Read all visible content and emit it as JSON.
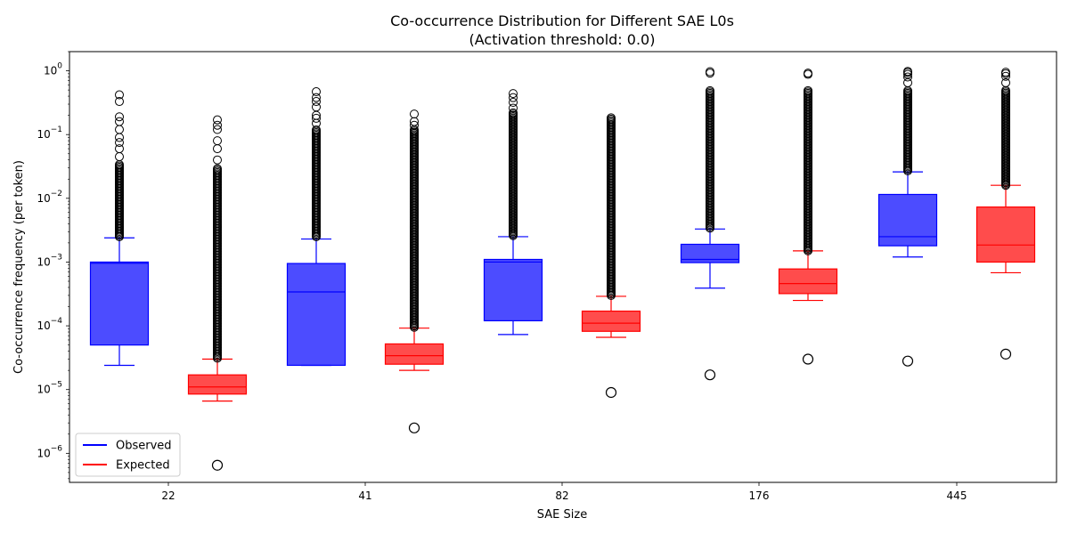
{
  "chart_data": {
    "type": "box",
    "title": "Co-occurrence Distribution for Different SAE L0s",
    "subtitle": "(Activation threshold: 0.0)",
    "xlabel": "SAE Size",
    "ylabel": "Co-occurrence frequency (per token)",
    "yscale": "log",
    "ylim": [
      3.5e-07,
      2
    ],
    "yticks": [
      {
        "value": 1e-06,
        "label_base": "10",
        "label_exp": "−6"
      },
      {
        "value": 1e-05,
        "label_base": "10",
        "label_exp": "−5"
      },
      {
        "value": 0.0001,
        "label_base": "10",
        "label_exp": "−4"
      },
      {
        "value": 0.001,
        "label_base": "10",
        "label_exp": "−3"
      },
      {
        "value": 0.01,
        "label_base": "10",
        "label_exp": "−2"
      },
      {
        "value": 0.1,
        "label_base": "10",
        "label_exp": "−1"
      },
      {
        "value": 1,
        "label_base": "10",
        "label_exp": "0"
      }
    ],
    "categories": [
      "22",
      "41",
      "82",
      "176",
      "445"
    ],
    "legend": {
      "location": "lower-left",
      "entries": [
        {
          "name": "Observed",
          "color": "#0000ff"
        },
        {
          "name": "Expected",
          "color": "#ff0000"
        }
      ]
    },
    "series": [
      {
        "name": "Observed",
        "color": "#0000ff",
        "boxes": [
          {
            "category": "22",
            "whisker_low": 2.4e-05,
            "q1": 5e-05,
            "median": 0.00096,
            "q3": 0.001,
            "whisker_high": 0.0024,
            "flier_low": null,
            "flier_dense_from": 0.0025,
            "flier_dense_to": 0.035,
            "flier_points": [
              0.045,
              0.06,
              0.075,
              0.09,
              0.12,
              0.16,
              0.19,
              0.33,
              0.42
            ]
          },
          {
            "category": "41",
            "whisker_low": 2.4e-05,
            "q1": 2.4e-05,
            "median": 0.00034,
            "q3": 0.00095,
            "whisker_high": 0.0023,
            "flier_low": null,
            "flier_dense_from": 0.0025,
            "flier_dense_to": 0.12,
            "flier_points": [
              0.15,
              0.18,
              0.2,
              0.27,
              0.33,
              0.38,
              0.47
            ]
          },
          {
            "category": "82",
            "whisker_low": 7.3e-05,
            "q1": 0.00012,
            "median": 0.001,
            "q3": 0.0011,
            "whisker_high": 0.0025,
            "flier_low": null,
            "flier_dense_from": 0.0026,
            "flier_dense_to": 0.22,
            "flier_points": [
              0.26,
              0.32,
              0.38,
              0.44
            ]
          },
          {
            "category": "176",
            "whisker_low": 0.00039,
            "q1": 0.00098,
            "median": 0.0011,
            "q3": 0.0019,
            "whisker_high": 0.0033,
            "flier_low": 1.7e-05,
            "flier_dense_from": 0.0034,
            "flier_dense_to": 0.5,
            "flier_points": [
              0.92,
              0.97
            ]
          },
          {
            "category": "445",
            "whisker_low": 0.0012,
            "q1": 0.0018,
            "median": 0.0025,
            "q3": 0.0115,
            "whisker_high": 0.026,
            "flier_low": 2.8e-05,
            "flier_dense_from": 0.027,
            "flier_dense_to": 0.5,
            "flier_points": [
              0.65,
              0.8,
              0.88,
              0.94,
              0.98
            ]
          }
        ]
      },
      {
        "name": "Expected",
        "color": "#ff0000",
        "boxes": [
          {
            "category": "22",
            "whisker_low": 6.6e-06,
            "q1": 8.5e-06,
            "median": 1.1e-05,
            "q3": 1.7e-05,
            "whisker_high": 3e-05,
            "flier_low": 6.5e-07,
            "flier_dense_from": 3.1e-05,
            "flier_dense_to": 0.03,
            "flier_points": [
              0.04,
              0.06,
              0.08,
              0.12,
              0.14,
              0.17
            ]
          },
          {
            "category": "41",
            "whisker_low": 2e-05,
            "q1": 2.5e-05,
            "median": 3.4e-05,
            "q3": 5.2e-05,
            "whisker_high": 9.2e-05,
            "flier_low": 2.5e-06,
            "flier_dense_from": 9.5e-05,
            "flier_dense_to": 0.12,
            "flier_points": [
              0.14,
              0.16,
              0.21
            ]
          },
          {
            "category": "82",
            "whisker_low": 6.6e-05,
            "q1": 8.2e-05,
            "median": 0.00011,
            "q3": 0.00017,
            "whisker_high": 0.00029,
            "flier_low": 9e-06,
            "flier_dense_from": 0.0003,
            "flier_dense_to": 0.19,
            "flier_points": []
          },
          {
            "category": "176",
            "whisker_low": 0.00025,
            "q1": 0.00032,
            "median": 0.00046,
            "q3": 0.00078,
            "whisker_high": 0.0015,
            "flier_low": 3e-05,
            "flier_dense_from": 0.0015,
            "flier_dense_to": 0.5,
            "flier_points": [
              0.88,
              0.92
            ]
          },
          {
            "category": "445",
            "whisker_low": 0.00068,
            "q1": 0.001,
            "median": 0.00185,
            "q3": 0.0073,
            "whisker_high": 0.016,
            "flier_low": 3.6e-05,
            "flier_dense_from": 0.016,
            "flier_dense_to": 0.5,
            "flier_points": [
              0.65,
              0.82,
              0.9,
              0.95
            ]
          }
        ]
      }
    ]
  }
}
